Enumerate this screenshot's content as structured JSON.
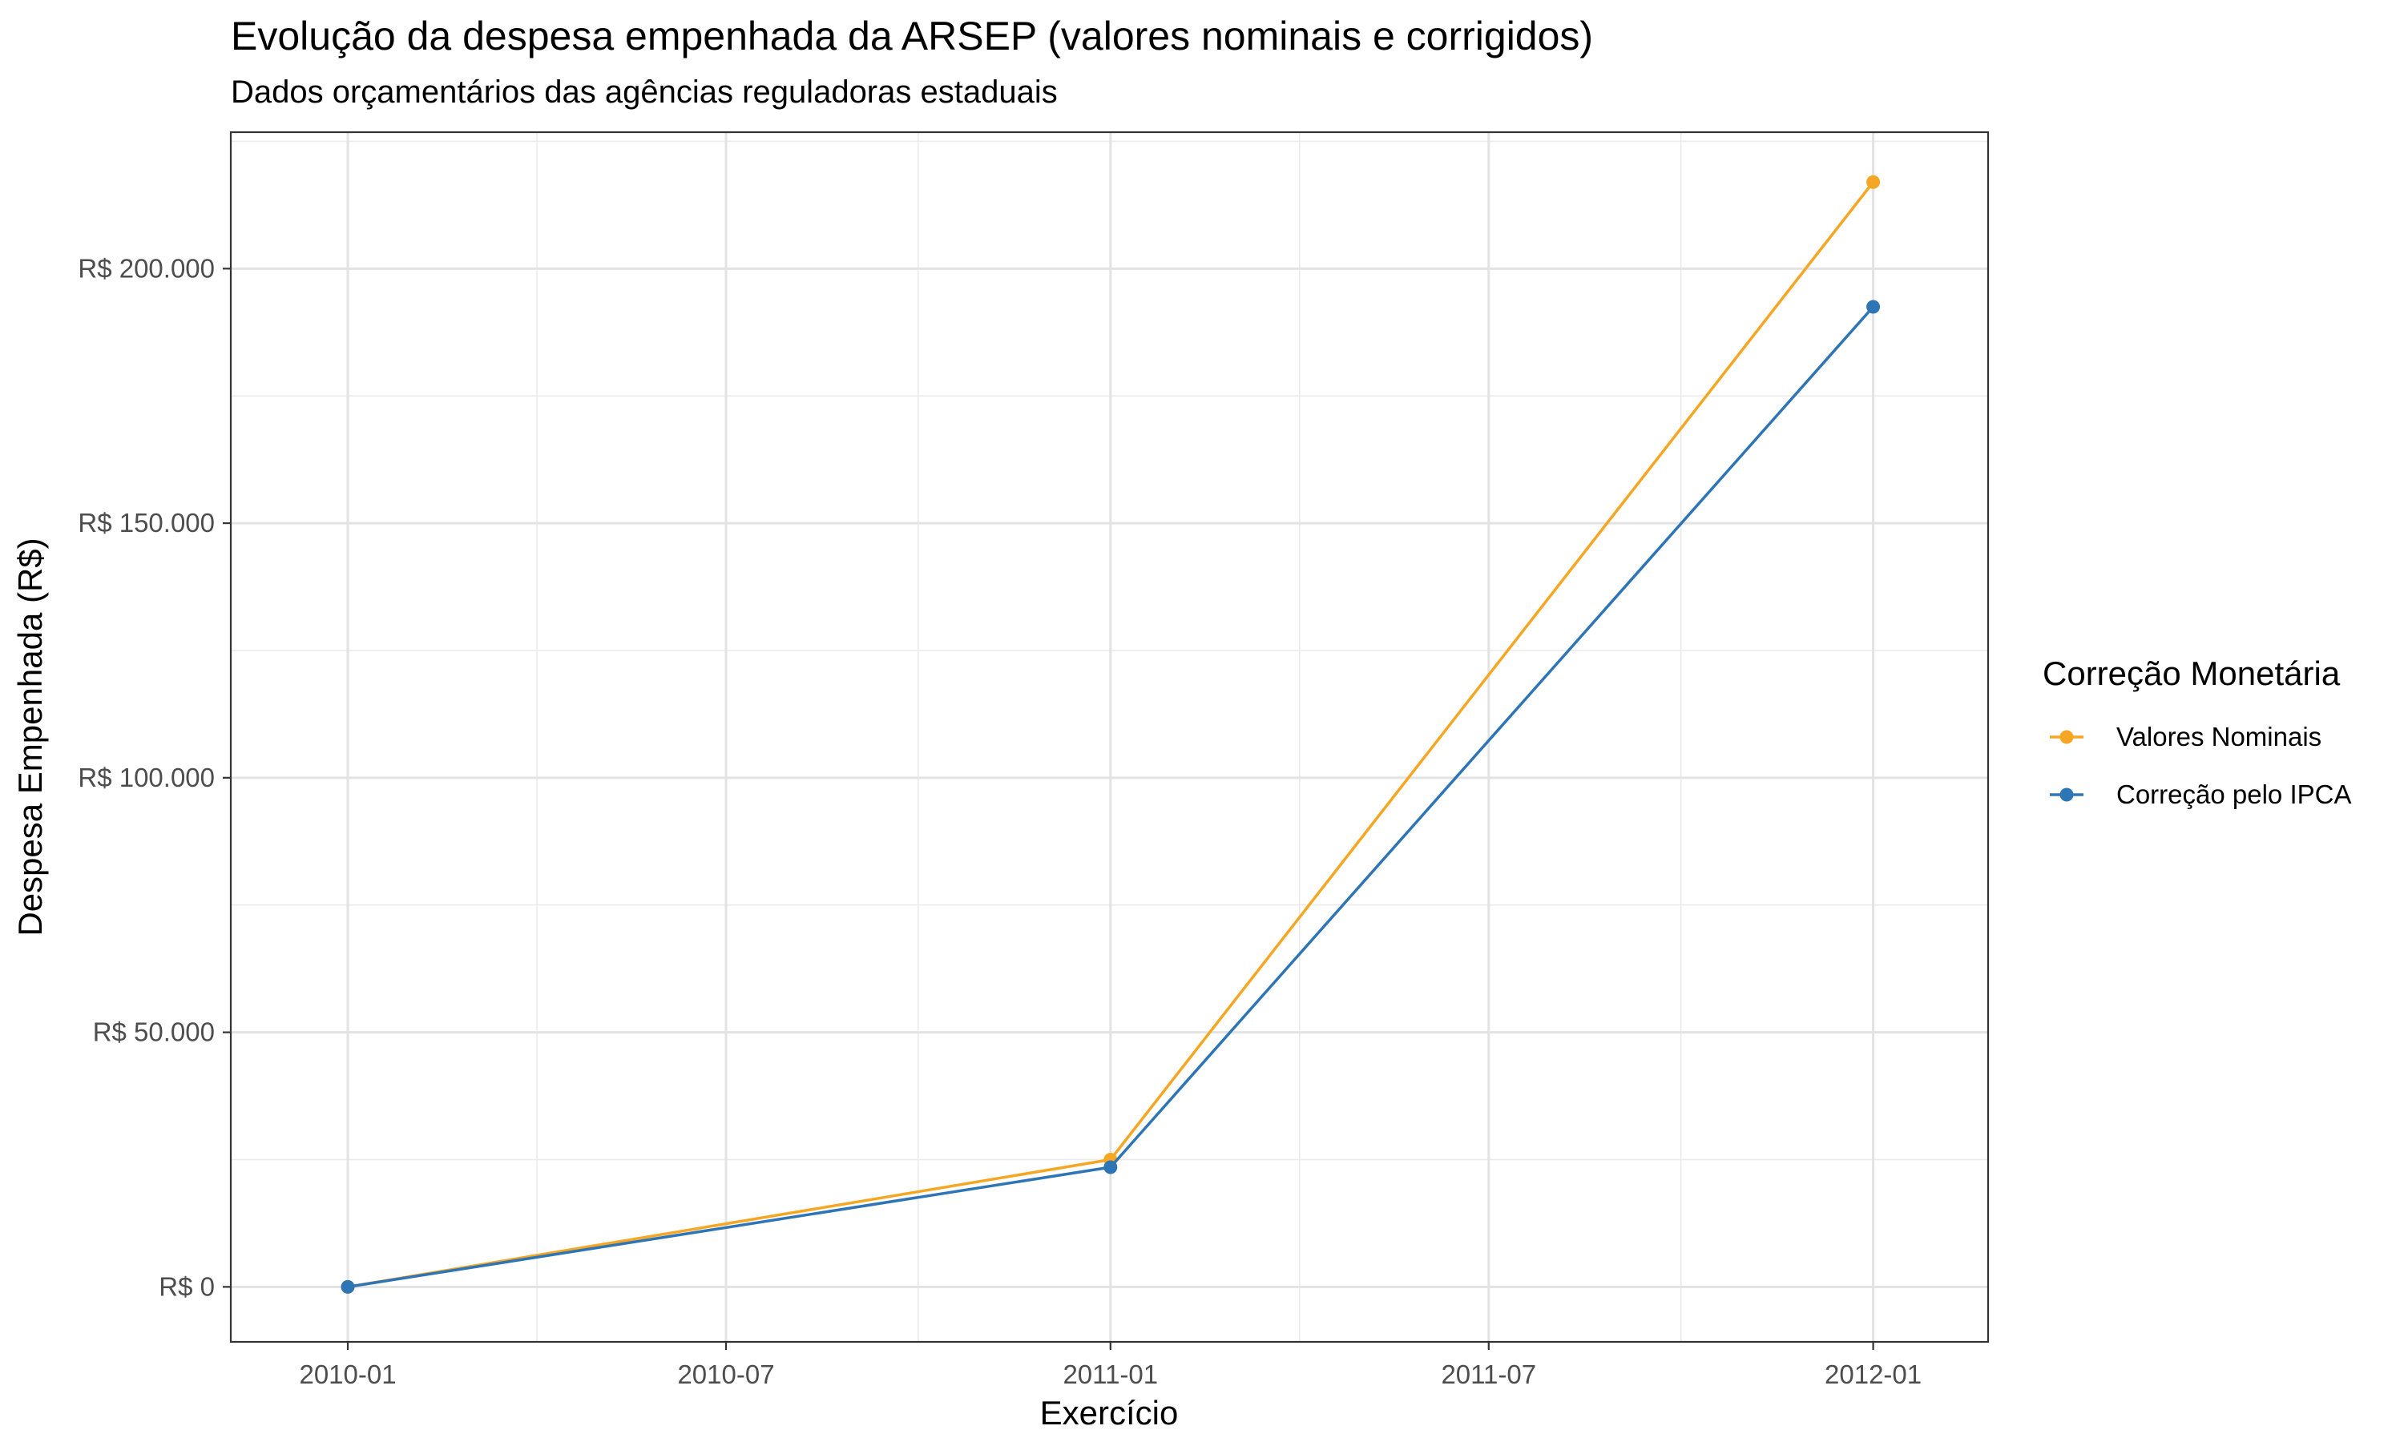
{
  "chart_data": {
    "type": "line",
    "title": "Evolução da despesa empenhada da ARSEP (valores nominais e corrigidos)",
    "subtitle": "Dados orçamentários das agências reguladoras estaduais",
    "xlabel": "Exercício",
    "ylabel": "Despesa Empenhada (R$)",
    "x": [
      "2010-01-01",
      "2011-01-01",
      "2012-01-01"
    ],
    "x_ticks": [
      "2010-01",
      "2010-07",
      "2011-01",
      "2011-07",
      "2012-01"
    ],
    "y_ticks": [
      "R$ 0",
      "R$ 50.000",
      "R$ 100.000",
      "R$ 150.000",
      "R$ 200.000"
    ],
    "xlim": [
      "2009-11-06",
      "2012-02-25"
    ],
    "ylim": [
      -10800,
      226800
    ],
    "grid": true,
    "legend_position": "right",
    "legend_title": "Correção Monetária",
    "series": [
      {
        "name": "Valores Nominais",
        "color": "#F5A623",
        "values": [
          0,
          25000,
          217000
        ]
      },
      {
        "name": "Correção pelo IPCA",
        "color": "#2E75B6",
        "values": [
          0,
          23500,
          192500
        ]
      }
    ]
  }
}
